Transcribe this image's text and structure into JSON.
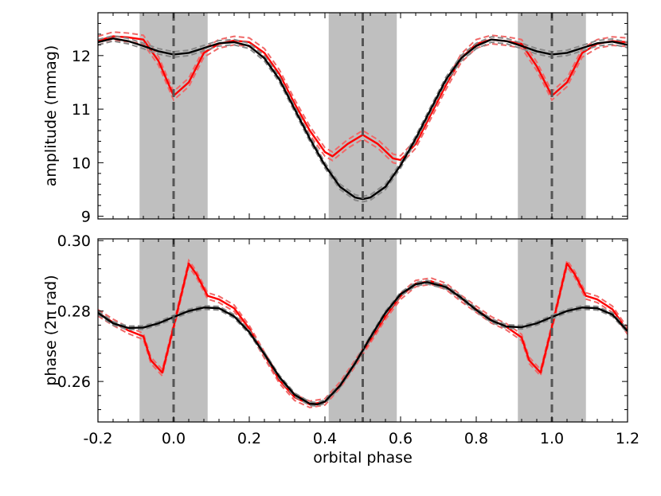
{
  "chart_data": {
    "type": "line",
    "xlabel": "orbital phase",
    "xlim": [
      -0.2,
      1.2
    ],
    "x_ticks": [
      "-0.2",
      "0.0",
      "0.2",
      "0.4",
      "0.6",
      "0.8",
      "1.0",
      "1.2"
    ],
    "eclipse_bands": [
      [
        -0.09,
        0.09
      ],
      [
        0.41,
        0.59
      ],
      [
        0.91,
        1.09
      ]
    ],
    "eclipse_centers": [
      0.0,
      0.5,
      1.0
    ],
    "colors": {
      "observed": "#ff0000",
      "observed_error": "#f06868",
      "model": "#000000",
      "model_error": "#888888",
      "band": "#bfbfbf",
      "center_line": "#555555"
    },
    "panels": [
      {
        "id": "amplitude",
        "ylabel": "amplitude (mmag)",
        "ylim": [
          8.95,
          12.8
        ],
        "y_ticks": [
          "9",
          "10",
          "11",
          "12"
        ],
        "y_tick_values": [
          9,
          10,
          11,
          12
        ],
        "series": [
          {
            "role": "observed",
            "x": [
              -0.2,
              -0.16,
              -0.12,
              -0.08,
              -0.04,
              0.0,
              0.04,
              0.08,
              0.12,
              0.16,
              0.2,
              0.24,
              0.28,
              0.32,
              0.36,
              0.4,
              0.42,
              0.46,
              0.5,
              0.54,
              0.58,
              0.6,
              0.64,
              0.68,
              0.72,
              0.76,
              0.8,
              0.84,
              0.88,
              0.92,
              0.96,
              1.0,
              1.04,
              1.08,
              1.12,
              1.16,
              1.2
            ],
            "y": [
              12.28,
              12.36,
              12.34,
              12.3,
              11.9,
              11.25,
              11.5,
              12.05,
              12.22,
              12.28,
              12.25,
              12.05,
              11.65,
              11.1,
              10.6,
              10.2,
              10.12,
              10.35,
              10.52,
              10.35,
              10.08,
              10.05,
              10.35,
              10.9,
              11.45,
              11.95,
              12.22,
              12.3,
              12.27,
              12.22,
              11.8,
              11.25,
              11.5,
              12.05,
              12.22,
              12.27,
              12.25
            ],
            "error": 0.08
          },
          {
            "role": "model",
            "x": [
              -0.2,
              -0.16,
              -0.12,
              -0.08,
              -0.04,
              0.0,
              0.04,
              0.08,
              0.12,
              0.16,
              0.2,
              0.24,
              0.28,
              0.32,
              0.36,
              0.4,
              0.44,
              0.48,
              0.5,
              0.52,
              0.56,
              0.6,
              0.64,
              0.68,
              0.72,
              0.76,
              0.8,
              0.84,
              0.88,
              0.92,
              0.96,
              1.0,
              1.04,
              1.08,
              1.12,
              1.16,
              1.2
            ],
            "y": [
              12.25,
              12.32,
              12.27,
              12.18,
              12.08,
              12.02,
              12.05,
              12.14,
              12.23,
              12.25,
              12.18,
              11.95,
              11.55,
              11.0,
              10.45,
              9.95,
              9.55,
              9.35,
              9.32,
              9.35,
              9.55,
              9.95,
              10.45,
              11.0,
              11.55,
              11.95,
              12.18,
              12.3,
              12.27,
              12.18,
              12.08,
              12.02,
              12.05,
              12.14,
              12.23,
              12.26,
              12.2
            ],
            "error": 0.05
          }
        ]
      },
      {
        "id": "phase",
        "ylabel": "phase (2π rad)",
        "ylim": [
          0.2485,
          0.3005
        ],
        "y_ticks": [
          "0.26",
          "0.28",
          "0.30"
        ],
        "y_tick_values": [
          0.26,
          0.28,
          0.3
        ],
        "series": [
          {
            "role": "observed",
            "x": [
              -0.2,
              -0.16,
              -0.12,
              -0.08,
              -0.06,
              -0.03,
              0.0,
              0.04,
              0.06,
              0.09,
              0.12,
              0.16,
              0.2,
              0.24,
              0.28,
              0.32,
              0.36,
              0.4,
              0.44,
              0.48,
              0.52,
              0.56,
              0.6,
              0.64,
              0.68,
              0.72,
              0.76,
              0.8,
              0.84,
              0.88,
              0.92,
              0.94,
              0.97,
              1.0,
              1.04,
              1.06,
              1.09,
              1.12,
              1.16,
              1.2
            ],
            "y": [
              0.2795,
              0.2768,
              0.2745,
              0.2728,
              0.266,
              0.2625,
              0.2755,
              0.2935,
              0.2905,
              0.2843,
              0.2833,
              0.2808,
              0.275,
              0.2675,
              0.2603,
              0.2555,
              0.2535,
              0.2542,
              0.259,
              0.2652,
              0.2718,
              0.2785,
              0.2842,
              0.2878,
              0.2885,
              0.287,
              0.2836,
              0.2805,
              0.2775,
              0.2755,
              0.2725,
              0.266,
              0.2625,
              0.2755,
              0.2935,
              0.2905,
              0.2843,
              0.2833,
              0.2805,
              0.2743
            ],
            "error": 0.0009
          },
          {
            "role": "model",
            "x": [
              -0.2,
              -0.16,
              -0.12,
              -0.08,
              -0.04,
              0.0,
              0.04,
              0.08,
              0.12,
              0.16,
              0.2,
              0.24,
              0.28,
              0.32,
              0.36,
              0.38,
              0.4,
              0.44,
              0.48,
              0.52,
              0.56,
              0.6,
              0.64,
              0.67,
              0.72,
              0.76,
              0.8,
              0.84,
              0.88,
              0.92,
              0.96,
              1.0,
              1.04,
              1.08,
              1.12,
              1.16,
              1.2
            ],
            "y": [
              0.2795,
              0.2765,
              0.2752,
              0.2753,
              0.2765,
              0.2783,
              0.28,
              0.281,
              0.2808,
              0.2785,
              0.274,
              0.2678,
              0.2612,
              0.2562,
              0.2537,
              0.2535,
              0.2543,
              0.2588,
              0.2652,
              0.2725,
              0.2795,
              0.2848,
              0.2876,
              0.2882,
              0.2868,
              0.2838,
              0.2803,
              0.2773,
              0.2756,
              0.2754,
              0.2765,
              0.2783,
              0.28,
              0.281,
              0.2808,
              0.279,
              0.2743
            ],
            "error": 0.0005
          }
        ]
      }
    ]
  }
}
